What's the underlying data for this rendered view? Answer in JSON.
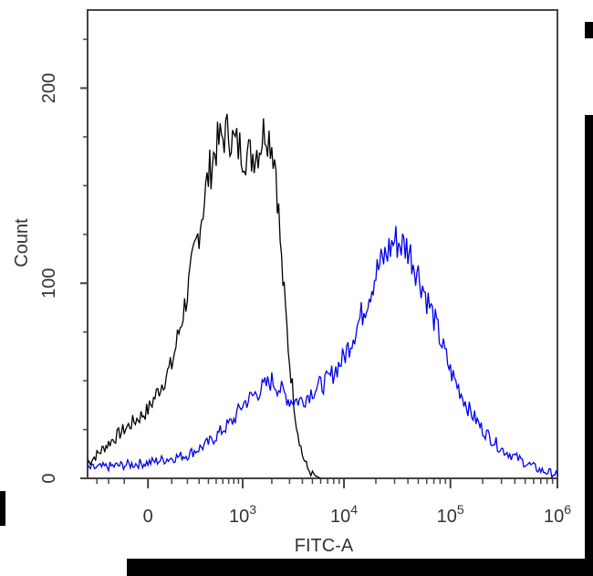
{
  "chart_data": {
    "type": "line",
    "title": "",
    "xlabel": "FITC-A",
    "ylabel": "Count",
    "x_scale": "logicle",
    "xlim": [
      -400,
      1000000
    ],
    "ylim": [
      0,
      240
    ],
    "x_ticks": [
      {
        "value": 0,
        "base": "0",
        "exp": ""
      },
      {
        "value": 1000,
        "base": "10",
        "exp": "3"
      },
      {
        "value": 10000,
        "base": "10",
        "exp": "4"
      },
      {
        "value": 100000,
        "base": "10",
        "exp": "5"
      },
      {
        "value": 1000000,
        "base": "10",
        "exp": "6"
      }
    ],
    "y_ticks": [
      {
        "value": 0,
        "label": "0"
      },
      {
        "value": 100,
        "label": "100"
      },
      {
        "value": 200,
        "label": "200"
      }
    ],
    "grid": false,
    "legend": "none",
    "series": [
      {
        "color": "#000000",
        "x": [
          -400,
          -300,
          -200,
          -100,
          0,
          100,
          200,
          300,
          400,
          500,
          600,
          700,
          800,
          1000,
          1200,
          1500,
          1700,
          2000,
          2200,
          2500,
          3000,
          3500,
          4000,
          4500,
          5000,
          5500,
          6000
        ],
        "y": [
          8,
          12,
          18,
          25,
          35,
          58,
          95,
          128,
          155,
          170,
          175,
          178,
          172,
          168,
          165,
          170,
          180,
          172,
          160,
          110,
          60,
          28,
          12,
          5,
          2,
          1,
          0
        ]
      },
      {
        "color": "#0000ee",
        "x": [
          -400,
          -200,
          0,
          200,
          400,
          600,
          800,
          1000,
          1500,
          2000,
          2500,
          3000,
          4000,
          5000,
          7000,
          10000,
          15000,
          20000,
          25000,
          30000,
          40000,
          50000,
          70000,
          100000,
          150000,
          200000,
          300000,
          500000,
          700000,
          1000000
        ],
        "y": [
          5,
          6,
          8,
          12,
          18,
          25,
          30,
          38,
          45,
          50,
          45,
          40,
          40,
          45,
          50,
          62,
          85,
          105,
          115,
          122,
          118,
          105,
          82,
          55,
          35,
          25,
          15,
          8,
          4,
          2
        ]
      }
    ]
  }
}
